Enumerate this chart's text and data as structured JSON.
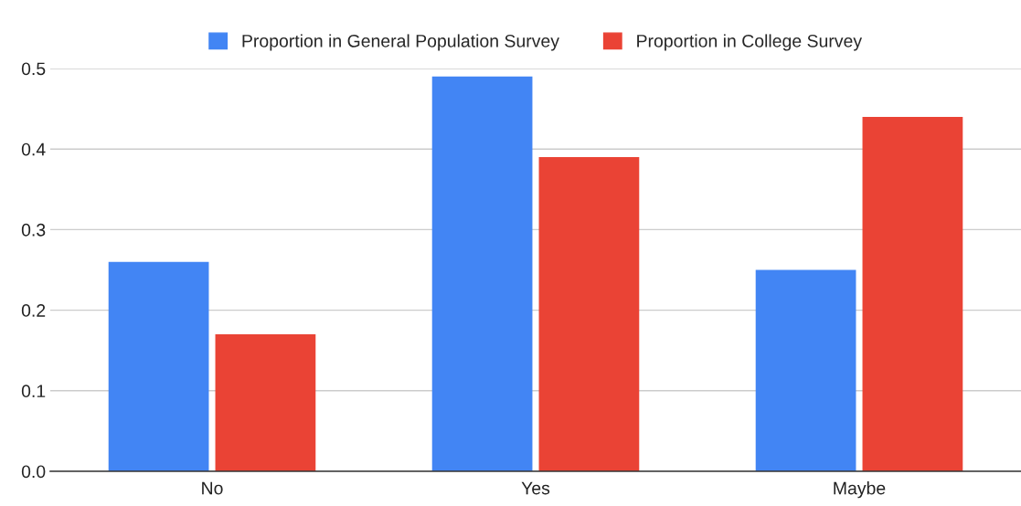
{
  "chart_data": {
    "type": "bar",
    "categories": [
      "No",
      "Yes",
      "Maybe"
    ],
    "series": [
      {
        "name": "Proportion in General Population Survey",
        "color": "#4285f4",
        "values": [
          0.26,
          0.49,
          0.25
        ]
      },
      {
        "name": "Proportion in College Survey",
        "color": "#ea4335",
        "values": [
          0.17,
          0.39,
          0.44
        ]
      }
    ],
    "ylim": [
      0,
      0.5
    ],
    "yticks": [
      {
        "value": 0,
        "label": "0.0"
      },
      0.1,
      0.2,
      0.3,
      0.4,
      0.5
    ],
    "grid": "y",
    "legend": "top"
  }
}
